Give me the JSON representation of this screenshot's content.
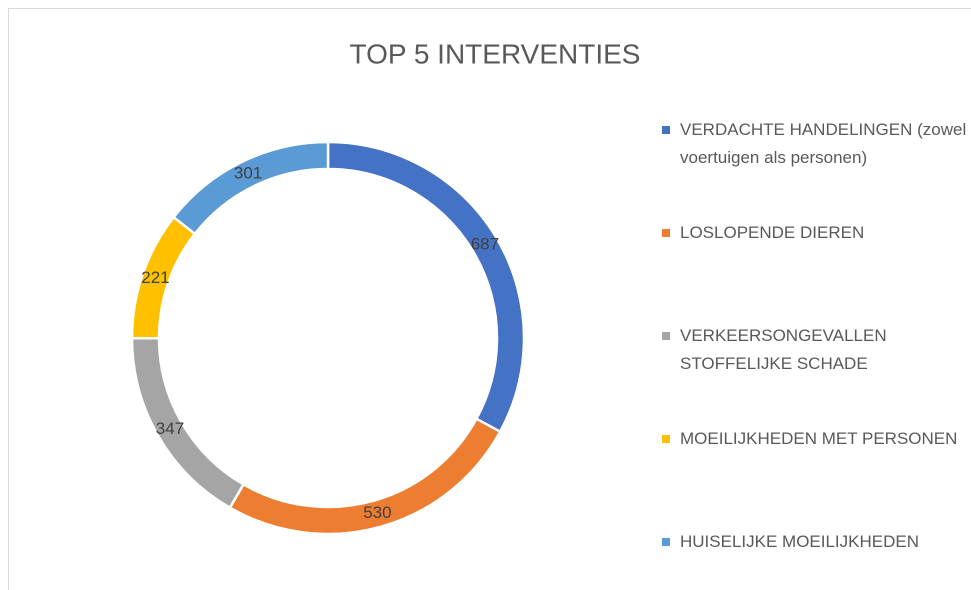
{
  "chart_data": {
    "type": "donut",
    "title": "TOP 5 INTERVENTIES",
    "categories": [
      "VERDACHTE HANDELINGEN (zowel voertuigen als personen)",
      "LOSLOPENDE DIEREN",
      "VERKEERSONGEVALLEN STOFFELIJKE SCHADE",
      "MOEILIJKHEDEN MET PERSONEN",
      "HUISELIJKE MOEILIJKHEDEN"
    ],
    "values": [
      687,
      530,
      347,
      221,
      301
    ],
    "colors": [
      "#4472c4",
      "#ed7d31",
      "#a5a5a5",
      "#ffc000",
      "#5b9bd5"
    ],
    "legend": "right"
  }
}
